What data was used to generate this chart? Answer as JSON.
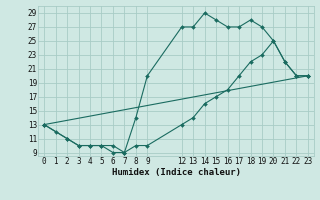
{
  "xlabel": "Humidex (Indice chaleur)",
  "bg_color": "#cfe8e3",
  "grid_color": "#a8ccc6",
  "line_color": "#1a6b60",
  "xlim": [
    -0.5,
    23.5
  ],
  "ylim": [
    8.5,
    30
  ],
  "xticks": [
    0,
    1,
    2,
    3,
    4,
    5,
    6,
    7,
    8,
    9,
    12,
    13,
    14,
    15,
    16,
    17,
    18,
    19,
    20,
    21,
    22,
    23
  ],
  "yticks": [
    9,
    11,
    13,
    15,
    17,
    19,
    21,
    23,
    25,
    27,
    29
  ],
  "series": [
    {
      "x": [
        0,
        1,
        2,
        3,
        4,
        5,
        6,
        7,
        8,
        9,
        12,
        13,
        14,
        15,
        16,
        17,
        18,
        19,
        20,
        21,
        22,
        23
      ],
      "y": [
        13,
        12,
        11,
        10,
        10,
        10,
        9,
        9,
        14,
        20,
        27,
        27,
        29,
        28,
        27,
        27,
        28,
        27,
        25,
        22,
        20,
        20
      ]
    },
    {
      "x": [
        0,
        2,
        3,
        4,
        5,
        6,
        7,
        8,
        9,
        12,
        13,
        14,
        15,
        16,
        17,
        18,
        19,
        20,
        21,
        22,
        23
      ],
      "y": [
        13,
        11,
        10,
        10,
        10,
        10,
        9,
        10,
        10,
        13,
        14,
        16,
        17,
        18,
        20,
        22,
        23,
        25,
        22,
        20,
        20
      ]
    },
    {
      "x": [
        0,
        23
      ],
      "y": [
        13,
        20
      ]
    }
  ]
}
